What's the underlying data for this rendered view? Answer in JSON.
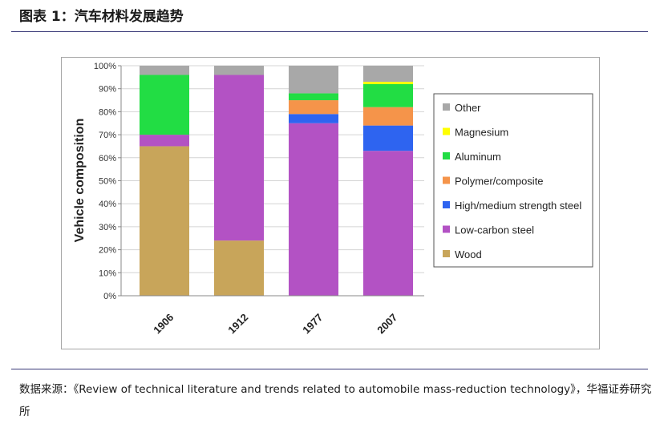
{
  "header": {
    "title": "图表 1：汽车材料发展趋势"
  },
  "chart_data": {
    "type": "bar",
    "stacked": true,
    "title": "",
    "xlabel": "",
    "ylabel": "Vehicle composition",
    "ylim": [
      0,
      100
    ],
    "y_tick_labels": [
      "0%",
      "10%",
      "20%",
      "30%",
      "40%",
      "50%",
      "60%",
      "70%",
      "80%",
      "90%",
      "100%"
    ],
    "categories": [
      "1906",
      "1912",
      "1977",
      "2007"
    ],
    "legend_position": "right",
    "series": [
      {
        "name": "Wood",
        "color": "#c8a55a",
        "values": [
          65,
          24,
          0,
          0
        ]
      },
      {
        "name": "Low-carbon steel",
        "color": "#b352c4",
        "values": [
          5,
          72,
          75,
          63
        ]
      },
      {
        "name": "High/medium strength steel",
        "color": "#2e64f0",
        "values": [
          0,
          0,
          4,
          11
        ]
      },
      {
        "name": "Polymer/composite",
        "color": "#f5944a",
        "values": [
          0,
          0,
          6,
          8
        ]
      },
      {
        "name": "Aluminum",
        "color": "#22dd44",
        "values": [
          26,
          0,
          3,
          10
        ]
      },
      {
        "name": "Magnesium",
        "color": "#ffff00",
        "values": [
          0,
          0,
          0,
          1
        ]
      },
      {
        "name": "Other",
        "color": "#a8a8a8",
        "values": [
          4,
          4,
          12,
          7
        ]
      }
    ]
  },
  "footer": {
    "source_text": "数据来源：《Review of technical literature and trends related to automobile mass-reduction technology》，华福证券研究所"
  }
}
